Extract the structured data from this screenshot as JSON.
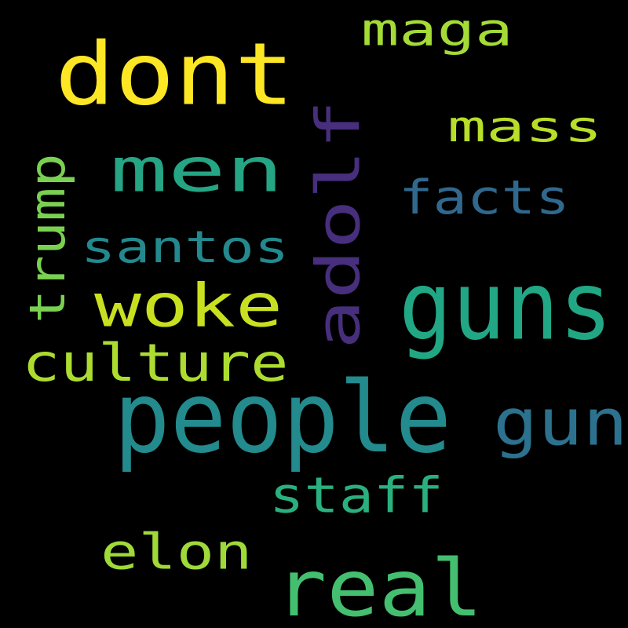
{
  "words": [
    {
      "text": "dont",
      "color": "#fde725",
      "rotated": false
    },
    {
      "text": "maga",
      "color": "#a5db36",
      "rotated": false
    },
    {
      "text": "men",
      "color": "#25a584",
      "rotated": false
    },
    {
      "text": "adolf",
      "color": "#472f7d",
      "rotated": true
    },
    {
      "text": "mass",
      "color": "#b8de29",
      "rotated": false
    },
    {
      "text": "facts",
      "color": "#31688e",
      "rotated": false
    },
    {
      "text": "trump",
      "color": "#7ad151",
      "rotated": true
    },
    {
      "text": "santos",
      "color": "#23898e",
      "rotated": false
    },
    {
      "text": "woke",
      "color": "#c8e020",
      "rotated": false
    },
    {
      "text": "guns",
      "color": "#22a785",
      "rotated": false
    },
    {
      "text": "culture",
      "color": "#addc30",
      "rotated": false
    },
    {
      "text": "people",
      "color": "#238a8d",
      "rotated": false
    },
    {
      "text": "gun",
      "color": "#2c728e",
      "rotated": false
    },
    {
      "text": "staff",
      "color": "#2ab07f",
      "rotated": false
    },
    {
      "text": "elon",
      "color": "#a0da39",
      "rotated": false
    },
    {
      "text": "real",
      "color": "#44bf70",
      "rotated": false
    }
  ]
}
